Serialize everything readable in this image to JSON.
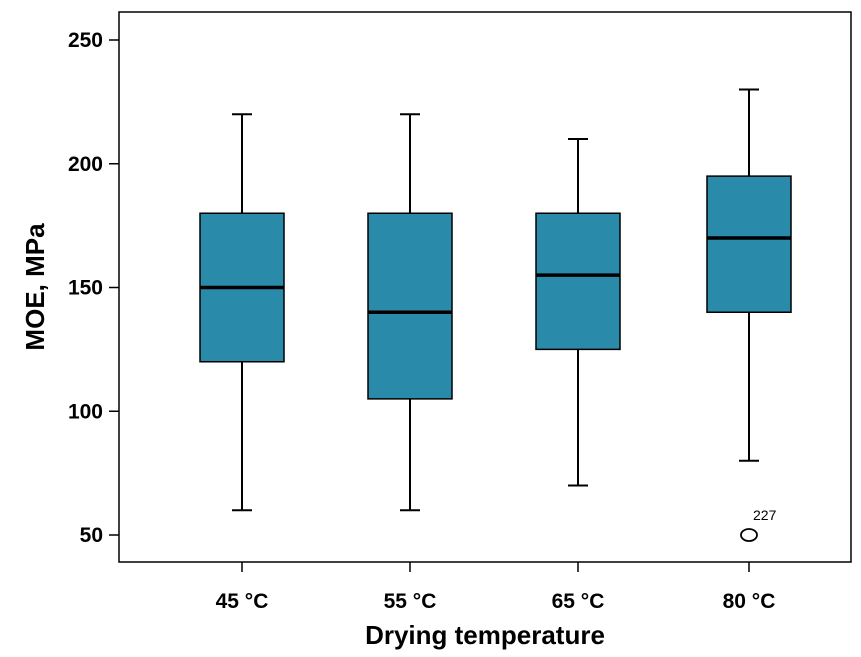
{
  "chart_data": {
    "type": "boxplot",
    "xlabel": "Drying temperature",
    "ylabel": "MOE, MPa",
    "ylim": [
      40,
      250
    ],
    "yticks": [
      50,
      100,
      150,
      200,
      250
    ],
    "grid": false,
    "box_color": "#2a8aaa",
    "categories": [
      "45 °C",
      "55 °C",
      "65 °C",
      "80 °C"
    ],
    "boxes": [
      {
        "whisker_low": 60,
        "q1": 120,
        "median": 150,
        "q3": 180,
        "whisker_high": 220,
        "outliers": []
      },
      {
        "whisker_low": 60,
        "q1": 105,
        "median": 140,
        "q3": 180,
        "whisker_high": 220,
        "outliers": []
      },
      {
        "whisker_low": 70,
        "q1": 125,
        "median": 155,
        "q3": 180,
        "whisker_high": 210,
        "outliers": []
      },
      {
        "whisker_low": 80,
        "q1": 140,
        "median": 170,
        "q3": 195,
        "whisker_high": 230,
        "outliers": [
          {
            "value": 50,
            "label": "227"
          }
        ]
      }
    ]
  }
}
